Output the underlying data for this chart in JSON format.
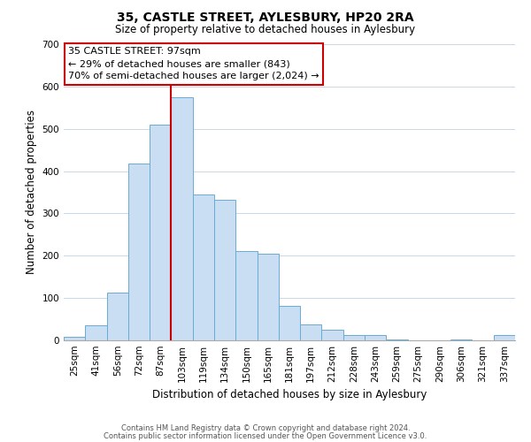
{
  "title": "35, CASTLE STREET, AYLESBURY, HP20 2RA",
  "subtitle": "Size of property relative to detached houses in Aylesbury",
  "xlabel": "Distribution of detached houses by size in Aylesbury",
  "ylabel": "Number of detached properties",
  "bar_labels": [
    "25sqm",
    "41sqm",
    "56sqm",
    "72sqm",
    "87sqm",
    "103sqm",
    "119sqm",
    "134sqm",
    "150sqm",
    "165sqm",
    "181sqm",
    "197sqm",
    "212sqm",
    "228sqm",
    "243sqm",
    "259sqm",
    "275sqm",
    "290sqm",
    "306sqm",
    "321sqm",
    "337sqm"
  ],
  "bar_values": [
    8,
    35,
    113,
    417,
    509,
    575,
    345,
    333,
    212,
    204,
    82,
    37,
    26,
    12,
    13,
    3,
    0,
    0,
    3,
    0,
    12
  ],
  "bar_color": "#c9ddf3",
  "bar_edge_color": "#6aaad4",
  "vline_x": 5,
  "vline_color": "#cc0000",
  "annotation_line1": "35 CASTLE STREET: 97sqm",
  "annotation_line2": "← 29% of detached houses are smaller (843)",
  "annotation_line3": "70% of semi-detached houses are larger (2,024) →",
  "ylim": [
    0,
    700
  ],
  "yticks": [
    0,
    100,
    200,
    300,
    400,
    500,
    600,
    700
  ],
  "footer1": "Contains HM Land Registry data © Crown copyright and database right 2024.",
  "footer2": "Contains public sector information licensed under the Open Government Licence v3.0.",
  "bg_color": "#ffffff",
  "grid_color": "#c8d8e8",
  "title_fontsize": 10,
  "subtitle_fontsize": 8.5,
  "ylabel_fontsize": 8.5,
  "xlabel_fontsize": 8.5,
  "tick_fontsize": 7.5,
  "annot_fontsize": 8,
  "footer_fontsize": 6
}
